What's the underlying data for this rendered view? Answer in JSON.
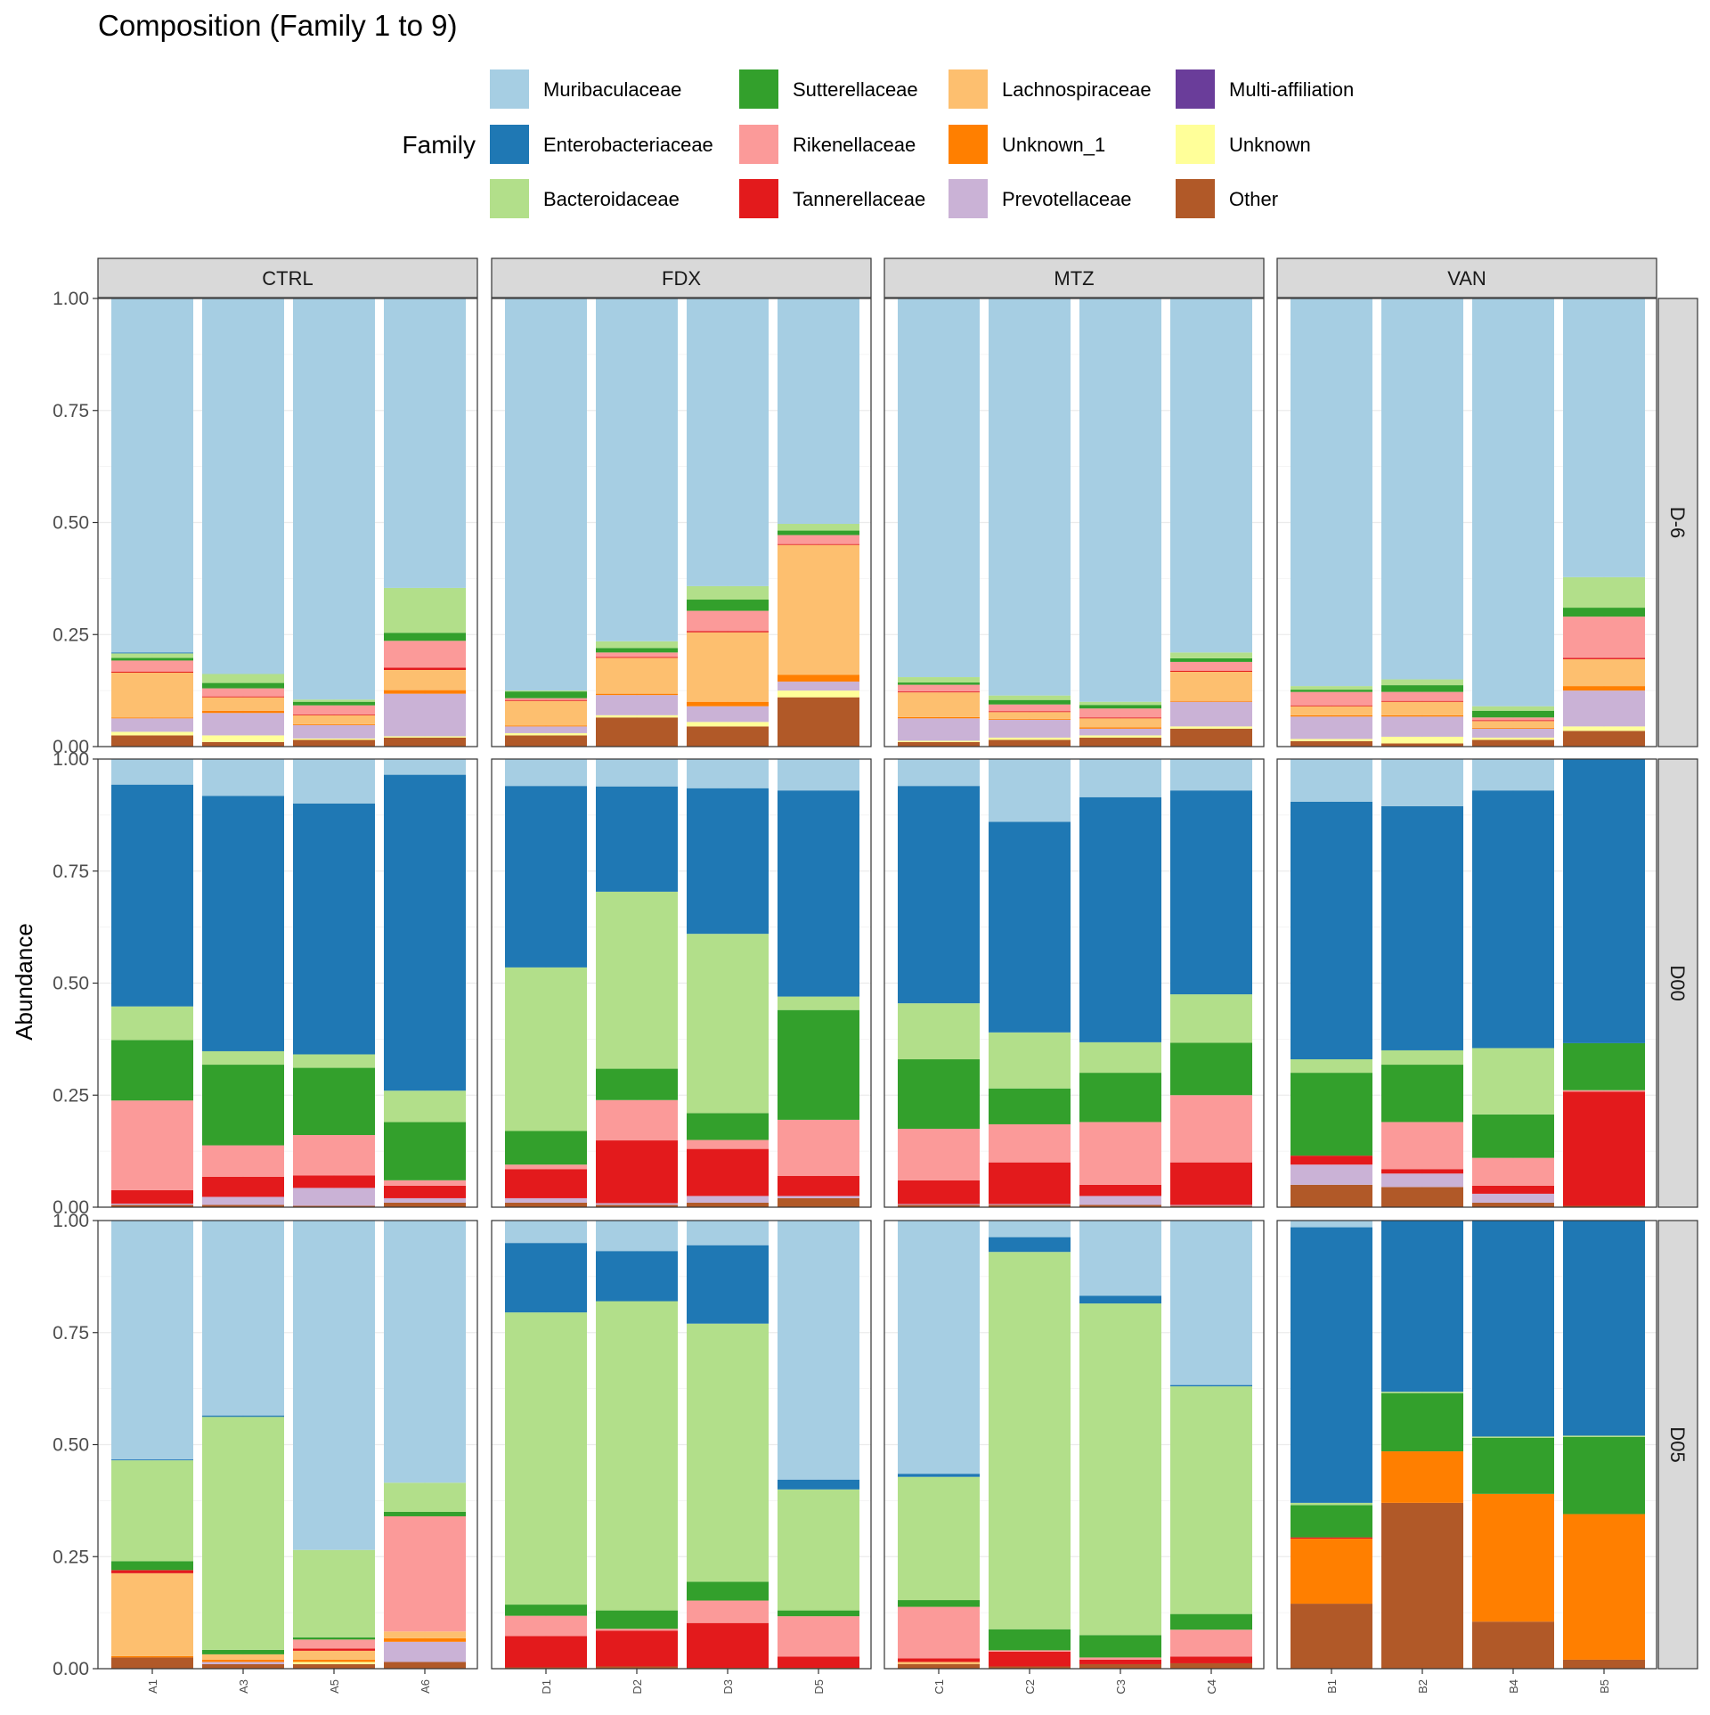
{
  "chart_data": {
    "type": "bar",
    "stacked": true,
    "title": "Composition (Family 1 to 9)",
    "ylabel": "Abundance",
    "xlabel": "",
    "ylim": [
      0,
      1
    ],
    "y_ticks": [
      "0.00",
      "0.25",
      "0.50",
      "0.75",
      "1.00"
    ],
    "grid": true,
    "legend": {
      "title": "Family",
      "position": "top",
      "columns": 4
    },
    "families": [
      {
        "name": "Muribaculaceae",
        "color": "#A6CEE3"
      },
      {
        "name": "Enterobacteriaceae",
        "color": "#1F78B4"
      },
      {
        "name": "Bacteroidaceae",
        "color": "#B2DF8A"
      },
      {
        "name": "Sutterellaceae",
        "color": "#33A02C"
      },
      {
        "name": "Rikenellaceae",
        "color": "#FB9A99"
      },
      {
        "name": "Tannerellaceae",
        "color": "#E31A1C"
      },
      {
        "name": "Lachnospiraceae",
        "color": "#FDBF6F"
      },
      {
        "name": "Unknown_1",
        "color": "#FF7F00"
      },
      {
        "name": "Prevotellaceae",
        "color": "#CAB2D6"
      },
      {
        "name": "Multi-affiliation",
        "color": "#6A3D9A"
      },
      {
        "name": "Unknown",
        "color": "#FFFF99"
      },
      {
        "name": "Other",
        "color": "#B15928"
      }
    ],
    "stack_order_bottom_to_top": [
      "Other",
      "Unknown",
      "Multi-affiliation",
      "Prevotellaceae",
      "Unknown_1",
      "Lachnospiraceae",
      "Tannerellaceae",
      "Rikenellaceae",
      "Sutterellaceae",
      "Bacteroidaceae",
      "Enterobacteriaceae",
      "Muribaculaceae"
    ],
    "columns": [
      {
        "label": "CTRL",
        "samples": [
          "A1",
          "A3",
          "A5",
          "A6"
        ]
      },
      {
        "label": "FDX",
        "samples": [
          "D1",
          "D2",
          "D3",
          "D5"
        ]
      },
      {
        "label": "MTZ",
        "samples": [
          "C1",
          "C2",
          "C3",
          "C4"
        ]
      },
      {
        "label": "VAN",
        "samples": [
          "B1",
          "B2",
          "B4",
          "B5"
        ]
      }
    ],
    "rows": [
      {
        "label": "D-6",
        "panels": [
          [
            {
              "Other": 0.025,
              "Unknown": 0.008,
              "Prevotellaceae": 0.03,
              "Unknown_1": 0.002,
              "Lachnospiraceae": 0.1,
              "Tannerellaceae": 0.002,
              "Rikenellaceae": 0.025,
              "Sutterellaceae": 0.006,
              "Bacteroidaceae": 0.01,
              "Enterobacteriaceae": 0.002,
              "Muribaculaceae": 0.79
            },
            {
              "Other": 0.01,
              "Unknown": 0.015,
              "Prevotellaceae": 0.05,
              "Unknown_1": 0.005,
              "Lachnospiraceae": 0.03,
              "Tannerellaceae": 0.002,
              "Rikenellaceae": 0.018,
              "Sutterellaceae": 0.012,
              "Bacteroidaceae": 0.02,
              "Muribaculaceae": 0.838
            },
            {
              "Other": 0.015,
              "Unknown": 0.003,
              "Prevotellaceae": 0.03,
              "Unknown_1": 0.002,
              "Lachnospiraceae": 0.02,
              "Tannerellaceae": 0.002,
              "Rikenellaceae": 0.02,
              "Sutterellaceae": 0.008,
              "Bacteroidaceae": 0.005,
              "Muribaculaceae": 0.895
            },
            {
              "Other": 0.02,
              "Unknown": 0.003,
              "Prevotellaceae": 0.095,
              "Unknown_1": 0.008,
              "Lachnospiraceae": 0.045,
              "Tannerellaceae": 0.005,
              "Rikenellaceae": 0.06,
              "Sutterellaceae": 0.018,
              "Bacteroidaceae": 0.1,
              "Muribaculaceae": 0.646
            }
          ],
          [
            {
              "Other": 0.025,
              "Unknown": 0.005,
              "Prevotellaceae": 0.015,
              "Unknown_1": 0.002,
              "Lachnospiraceae": 0.055,
              "Tannerellaceae": 0.002,
              "Rikenellaceae": 0.004,
              "Sutterellaceae": 0.015,
              "Bacteroidaceae": 0.002,
              "Muribaculaceae": 0.875
            },
            {
              "Other": 0.065,
              "Unknown": 0.005,
              "Prevotellaceae": 0.045,
              "Unknown_1": 0.003,
              "Lachnospiraceae": 0.08,
              "Tannerellaceae": 0.002,
              "Rikenellaceae": 0.01,
              "Sutterellaceae": 0.01,
              "Bacteroidaceae": 0.015,
              "Muribaculaceae": 0.765
            },
            {
              "Other": 0.045,
              "Unknown": 0.01,
              "Prevotellaceae": 0.035,
              "Unknown_1": 0.01,
              "Lachnospiraceae": 0.155,
              "Tannerellaceae": 0.003,
              "Rikenellaceae": 0.045,
              "Sutterellaceae": 0.025,
              "Bacteroidaceae": 0.03,
              "Muribaculaceae": 0.642
            },
            {
              "Other": 0.11,
              "Unknown": 0.015,
              "Prevotellaceae": 0.02,
              "Unknown_1": 0.015,
              "Lachnospiraceae": 0.29,
              "Tannerellaceae": 0.002,
              "Rikenellaceae": 0.02,
              "Sutterellaceae": 0.01,
              "Bacteroidaceae": 0.015,
              "Muribaculaceae": 0.503
            }
          ],
          [
            {
              "Other": 0.01,
              "Unknown": 0.003,
              "Prevotellaceae": 0.05,
              "Unknown_1": 0.003,
              "Lachnospiraceae": 0.055,
              "Tannerellaceae": 0.002,
              "Rikenellaceae": 0.015,
              "Sutterellaceae": 0.005,
              "Bacteroidaceae": 0.012,
              "Muribaculaceae": 0.845
            },
            {
              "Other": 0.015,
              "Unknown": 0.005,
              "Prevotellaceae": 0.04,
              "Unknown_1": 0.002,
              "Lachnospiraceae": 0.015,
              "Tannerellaceae": 0.002,
              "Rikenellaceae": 0.015,
              "Sutterellaceae": 0.01,
              "Bacteroidaceae": 0.01,
              "Muribaculaceae": 0.886
            },
            {
              "Other": 0.02,
              "Unknown": 0.005,
              "Prevotellaceae": 0.015,
              "Unknown_1": 0.003,
              "Lachnospiraceae": 0.02,
              "Tannerellaceae": 0.002,
              "Rikenellaceae": 0.02,
              "Sutterellaceae": 0.008,
              "Bacteroidaceae": 0.007,
              "Muribaculaceae": 0.9
            },
            {
              "Other": 0.04,
              "Unknown": 0.005,
              "Prevotellaceae": 0.055,
              "Unknown_1": 0.002,
              "Lachnospiraceae": 0.065,
              "Tannerellaceae": 0.002,
              "Rikenellaceae": 0.02,
              "Sutterellaceae": 0.008,
              "Bacteroidaceae": 0.013,
              "Muribaculaceae": 0.79
            }
          ],
          [
            {
              "Other": 0.012,
              "Unknown": 0.005,
              "Prevotellaceae": 0.05,
              "Unknown_1": 0.003,
              "Lachnospiraceae": 0.02,
              "Tannerellaceae": 0.002,
              "Rikenellaceae": 0.03,
              "Sutterellaceae": 0.005,
              "Bacteroidaceae": 0.008,
              "Muribaculaceae": 0.865
            },
            {
              "Other": 0.007,
              "Unknown": 0.015,
              "Prevotellaceae": 0.045,
              "Unknown_1": 0.003,
              "Lachnospiraceae": 0.03,
              "Tannerellaceae": 0.002,
              "Rikenellaceae": 0.02,
              "Sutterellaceae": 0.015,
              "Bacteroidaceae": 0.013,
              "Muribaculaceae": 0.85
            },
            {
              "Other": 0.015,
              "Unknown": 0.005,
              "Prevotellaceae": 0.02,
              "Unknown_1": 0.002,
              "Lachnospiraceae": 0.015,
              "Tannerellaceae": 0.002,
              "Rikenellaceae": 0.006,
              "Sutterellaceae": 0.015,
              "Bacteroidaceae": 0.01,
              "Muribaculaceae": 0.91
            },
            {
              "Other": 0.035,
              "Unknown": 0.01,
              "Prevotellaceae": 0.08,
              "Unknown_1": 0.01,
              "Lachnospiraceae": 0.06,
              "Tannerellaceae": 0.003,
              "Rikenellaceae": 0.092,
              "Sutterellaceae": 0.02,
              "Bacteroidaceae": 0.068,
              "Muribaculaceae": 0.622
            }
          ]
        ]
      },
      {
        "label": "D00",
        "panels": [
          [
            {
              "Other": 0.005,
              "Prevotellaceae": 0.003,
              "Tannerellaceae": 0.03,
              "Rikenellaceae": 0.2,
              "Sutterellaceae": 0.135,
              "Bacteroidaceae": 0.075,
              "Enterobacteriaceae": 0.495,
              "Muribaculaceae": 0.057
            },
            {
              "Other": 0.005,
              "Prevotellaceae": 0.018,
              "Tannerellaceae": 0.045,
              "Rikenellaceae": 0.07,
              "Sutterellaceae": 0.18,
              "Bacteroidaceae": 0.03,
              "Enterobacteriaceae": 0.57,
              "Muribaculaceae": 0.082
            },
            {
              "Other": 0.003,
              "Prevotellaceae": 0.04,
              "Tannerellaceae": 0.028,
              "Rikenellaceae": 0.09,
              "Sutterellaceae": 0.15,
              "Bacteroidaceae": 0.03,
              "Enterobacteriaceae": 0.56,
              "Muribaculaceae": 0.099
            },
            {
              "Other": 0.01,
              "Prevotellaceae": 0.01,
              "Tannerellaceae": 0.028,
              "Rikenellaceae": 0.012,
              "Sutterellaceae": 0.13,
              "Bacteroidaceae": 0.07,
              "Enterobacteriaceae": 0.705,
              "Muribaculaceae": 0.035
            }
          ],
          [
            {
              "Other": 0.01,
              "Prevotellaceae": 0.01,
              "Tannerellaceae": 0.065,
              "Rikenellaceae": 0.01,
              "Sutterellaceae": 0.075,
              "Bacteroidaceae": 0.365,
              "Enterobacteriaceae": 0.405,
              "Muribaculaceae": 0.06
            },
            {
              "Other": 0.005,
              "Prevotellaceae": 0.004,
              "Tannerellaceae": 0.14,
              "Rikenellaceae": 0.09,
              "Sutterellaceae": 0.07,
              "Bacteroidaceae": 0.395,
              "Enterobacteriaceae": 0.235,
              "Muribaculaceae": 0.061
            },
            {
              "Other": 0.01,
              "Prevotellaceae": 0.015,
              "Tannerellaceae": 0.105,
              "Rikenellaceae": 0.02,
              "Sutterellaceae": 0.06,
              "Bacteroidaceae": 0.4,
              "Enterobacteriaceae": 0.325,
              "Muribaculaceae": 0.065
            },
            {
              "Other": 0.02,
              "Prevotellaceae": 0.005,
              "Tannerellaceae": 0.045,
              "Rikenellaceae": 0.125,
              "Sutterellaceae": 0.245,
              "Bacteroidaceae": 0.03,
              "Enterobacteriaceae": 0.46,
              "Muribaculaceae": 0.07
            }
          ],
          [
            {
              "Other": 0.005,
              "Prevotellaceae": 0.002,
              "Tannerellaceae": 0.053,
              "Rikenellaceae": 0.115,
              "Sutterellaceae": 0.155,
              "Bacteroidaceae": 0.125,
              "Enterobacteriaceae": 0.485,
              "Muribaculaceae": 0.06
            },
            {
              "Other": 0.005,
              "Prevotellaceae": 0.002,
              "Tannerellaceae": 0.093,
              "Rikenellaceae": 0.085,
              "Sutterellaceae": 0.08,
              "Bacteroidaceae": 0.125,
              "Enterobacteriaceae": 0.47,
              "Muribaculaceae": 0.14
            },
            {
              "Other": 0.005,
              "Prevotellaceae": 0.02,
              "Tannerellaceae": 0.025,
              "Rikenellaceae": 0.14,
              "Sutterellaceae": 0.11,
              "Bacteroidaceae": 0.068,
              "Enterobacteriaceae": 0.547,
              "Muribaculaceae": 0.085
            },
            {
              "Other": 0.003,
              "Prevotellaceae": 0.002,
              "Tannerellaceae": 0.095,
              "Rikenellaceae": 0.15,
              "Sutterellaceae": 0.117,
              "Bacteroidaceae": 0.108,
              "Enterobacteriaceae": 0.455,
              "Muribaculaceae": 0.07
            }
          ],
          [
            {
              "Other": 0.05,
              "Prevotellaceae": 0.045,
              "Tannerellaceae": 0.02,
              "Sutterellaceae": 0.185,
              "Bacteroidaceae": 0.03,
              "Enterobacteriaceae": 0.575,
              "Muribaculaceae": 0.095
            },
            {
              "Other": 0.045,
              "Prevotellaceae": 0.03,
              "Tannerellaceae": 0.01,
              "Rikenellaceae": 0.105,
              "Sutterellaceae": 0.128,
              "Bacteroidaceae": 0.032,
              "Enterobacteriaceae": 0.545,
              "Muribaculaceae": 0.105
            },
            {
              "Other": 0.01,
              "Prevotellaceae": 0.02,
              "Tannerellaceae": 0.018,
              "Rikenellaceae": 0.062,
              "Sutterellaceae": 0.097,
              "Bacteroidaceae": 0.148,
              "Enterobacteriaceae": 0.575,
              "Muribaculaceae": 0.07
            },
            {
              "Other": 0.003,
              "Tannerellaceae": 0.255,
              "Rikenellaceae": 0.003,
              "Sutterellaceae": 0.105,
              "Enterobacteriaceae": 0.634
            }
          ]
        ]
      },
      {
        "label": "D05",
        "panels": [
          [
            {
              "Other": 0.025,
              "Lachnospiraceae": 0.185,
              "Unknown_1": 0.003,
              "Tannerellaceae": 0.007,
              "Sutterellaceae": 0.02,
              "Bacteroidaceae": 0.225,
              "Enterobacteriaceae": 0.002,
              "Muribaculaceae": 0.533
            },
            {
              "Other": 0.01,
              "Prevotellaceae": 0.005,
              "Unknown_1": 0.005,
              "Lachnospiraceae": 0.012,
              "Sutterellaceae": 0.01,
              "Bacteroidaceae": 0.52,
              "Enterobacteriaceae": 0.003,
              "Muribaculaceae": 0.435
            },
            {
              "Other": 0.01,
              "Unknown": 0.005,
              "Lachnospiraceae": 0.02,
              "Unknown_1": 0.005,
              "Tannerellaceae": 0.005,
              "Rikenellaceae": 0.02,
              "Sutterellaceae": 0.005,
              "Bacteroidaceae": 0.195,
              "Muribaculaceae": 0.735
            },
            {
              "Other": 0.015,
              "Prevotellaceae": 0.045,
              "Lachnospiraceae": 0.015,
              "Unknown_1": 0.008,
              "Rikenellaceae": 0.257,
              "Sutterellaceae": 0.01,
              "Bacteroidaceae": 0.065,
              "Muribaculaceae": 0.585
            }
          ],
          [
            {
              "Other": 0.003,
              "Tannerellaceae": 0.07,
              "Rikenellaceae": 0.045,
              "Sutterellaceae": 0.025,
              "Bacteroidaceae": 0.652,
              "Enterobacteriaceae": 0.155,
              "Muribaculaceae": 0.05
            },
            {
              "Other": 0.005,
              "Tannerellaceae": 0.08,
              "Rikenellaceae": 0.004,
              "Sutterellaceae": 0.041,
              "Bacteroidaceae": 0.69,
              "Enterobacteriaceae": 0.112,
              "Muribaculaceae": 0.068
            },
            {
              "Other": 0.002,
              "Tannerellaceae": 0.1,
              "Rikenellaceae": 0.05,
              "Sutterellaceae": 0.042,
              "Bacteroidaceae": 0.576,
              "Enterobacteriaceae": 0.175,
              "Muribaculaceae": 0.055
            },
            {
              "Other": 0.002,
              "Tannerellaceae": 0.025,
              "Rikenellaceae": 0.09,
              "Sutterellaceae": 0.013,
              "Bacteroidaceae": 0.27,
              "Enterobacteriaceae": 0.022,
              "Muribaculaceae": 0.578
            }
          ],
          [
            {
              "Other": 0.01,
              "Lachnospiraceae": 0.005,
              "Tannerellaceae": 0.008,
              "Rikenellaceae": 0.115,
              "Sutterellaceae": 0.015,
              "Bacteroidaceae": 0.275,
              "Enterobacteriaceae": 0.007,
              "Muribaculaceae": 0.565
            },
            {
              "Other": 0.005,
              "Tannerellaceae": 0.033,
              "Rikenellaceae": 0.003,
              "Sutterellaceae": 0.047,
              "Bacteroidaceae": 0.842,
              "Enterobacteriaceae": 0.033,
              "Muribaculaceae": 0.037
            },
            {
              "Other": 0.01,
              "Tannerellaceae": 0.01,
              "Rikenellaceae": 0.005,
              "Sutterellaceae": 0.05,
              "Bacteroidaceae": 0.74,
              "Enterobacteriaceae": 0.017,
              "Muribaculaceae": 0.168
            },
            {
              "Other": 0.012,
              "Tannerellaceae": 0.015,
              "Rikenellaceae": 0.06,
              "Sutterellaceae": 0.035,
              "Bacteroidaceae": 0.508,
              "Enterobacteriaceae": 0.003,
              "Muribaculaceae": 0.367
            }
          ],
          [
            {
              "Other": 0.145,
              "Unknown_1": 0.145,
              "Tannerellaceae": 0.003,
              "Sutterellaceae": 0.072,
              "Bacteroidaceae": 0.005,
              "Enterobacteriaceae": 0.615,
              "Muribaculaceae": 0.015
            },
            {
              "Other": 0.37,
              "Unknown_1": 0.115,
              "Sutterellaceae": 0.13,
              "Bacteroidaceae": 0.003,
              "Enterobacteriaceae": 0.382
            },
            {
              "Other": 0.105,
              "Unknown_1": 0.285,
              "Sutterellaceae": 0.125,
              "Bacteroidaceae": 0.003,
              "Enterobacteriaceae": 0.482
            },
            {
              "Other": 0.02,
              "Unknown_1": 0.325,
              "Sutterellaceae": 0.172,
              "Bacteroidaceae": 0.003,
              "Enterobacteriaceae": 0.48
            }
          ]
        ]
      }
    ]
  }
}
